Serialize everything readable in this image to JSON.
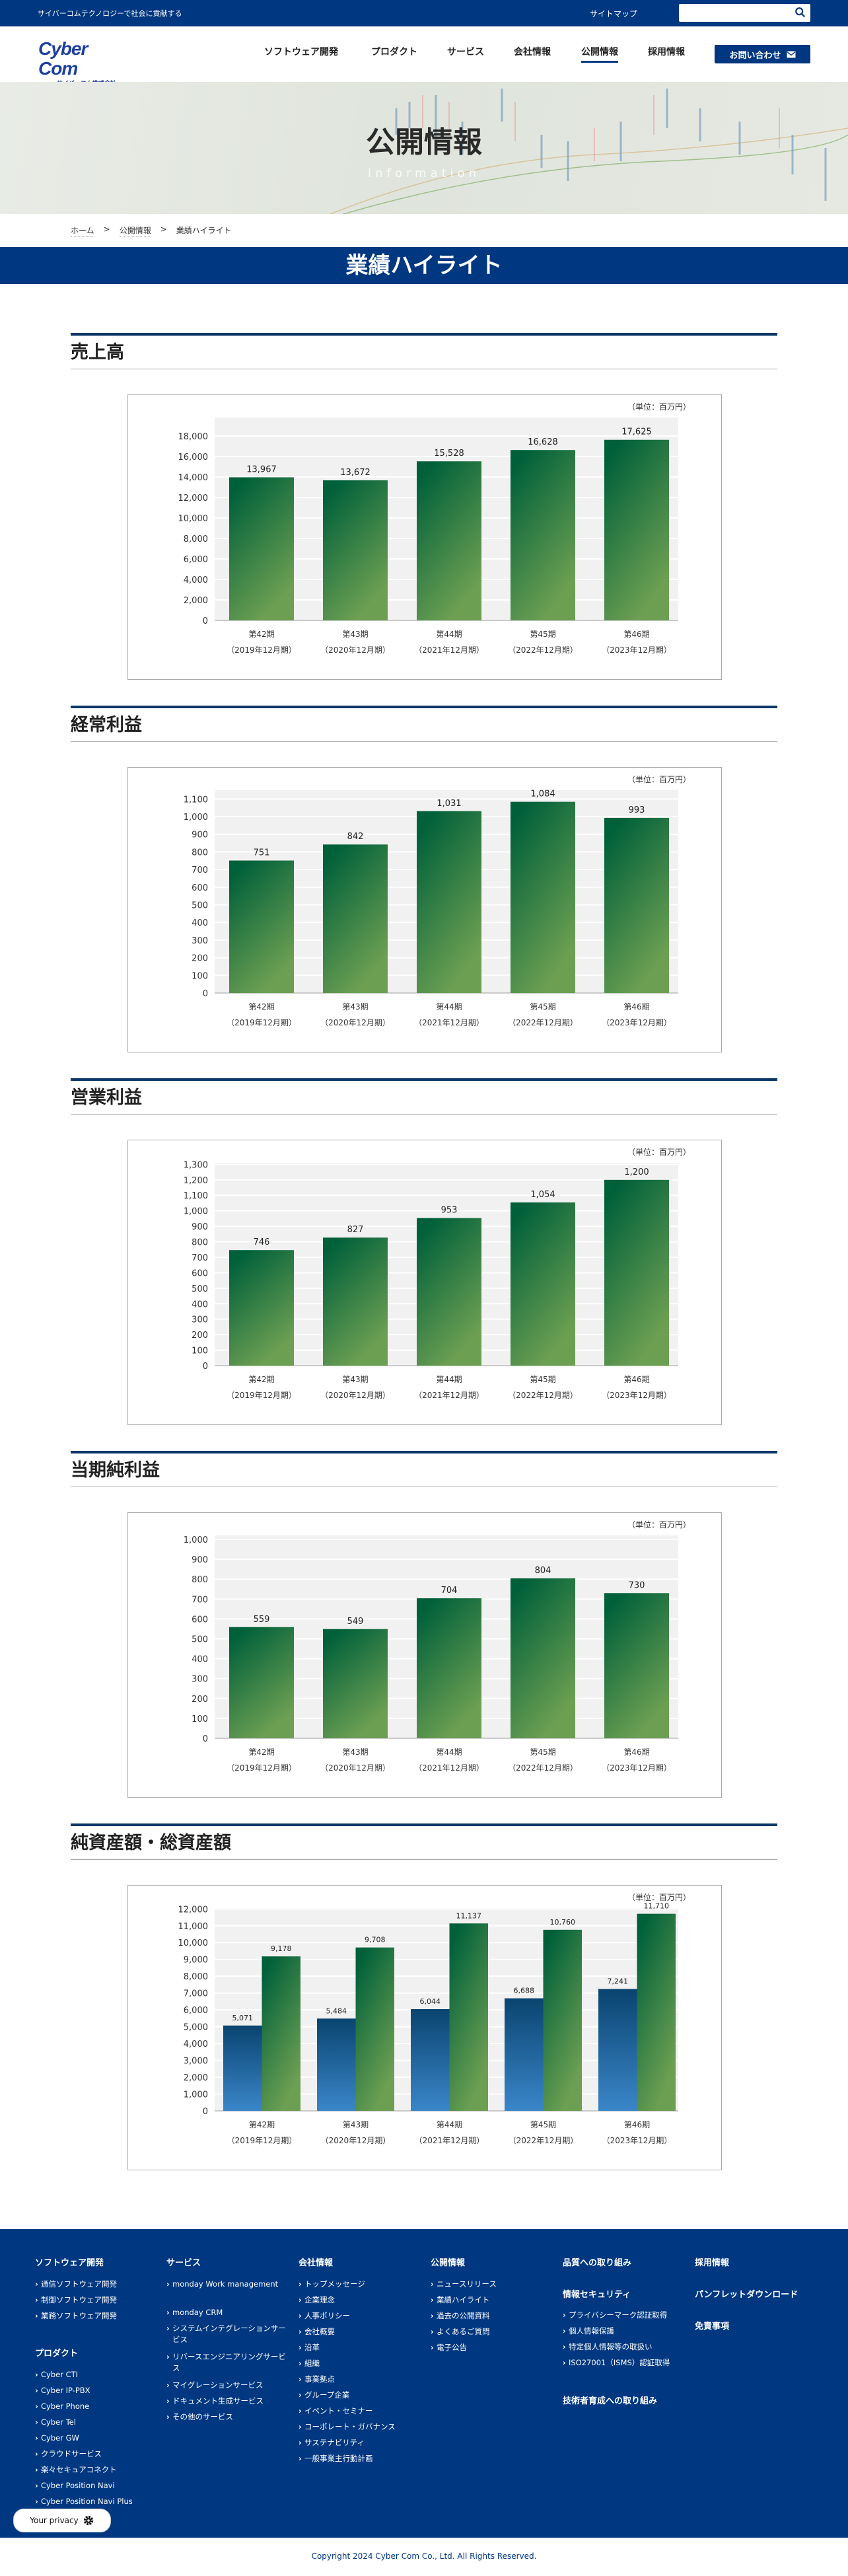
{
  "topbar": {
    "tagline": "サイバーコムテクノロジーで社会に貢献する",
    "sitemap": "サイトマップ",
    "search_placeholder": ""
  },
  "header": {
    "logo_main": "Cyber Com",
    "logo_sub": "サイバーコム株式会社",
    "nav": [
      "ソフトウェア開発",
      "プロダクト",
      "サービス",
      "会社情報",
      "公開情報",
      "採用情報"
    ],
    "active_nav": "公開情報",
    "contact": "お問い合わせ"
  },
  "hero": {
    "title": "公開情報",
    "subtitle": "Information"
  },
  "breadcrumb": [
    "ホーム",
    "公開情報",
    "業績ハイライト"
  ],
  "page_title": "業績ハイライト",
  "colors": {
    "brand": "#003781",
    "bar_green_top": "#00603a",
    "bar_green_bottom": "#6c9f52",
    "bar_blue_top": "#0a4470",
    "bar_blue_bottom": "#3a86c9"
  },
  "sections": [
    {
      "title": "売上高"
    },
    {
      "title": "経常利益"
    },
    {
      "title": "営業利益"
    },
    {
      "title": "当期純利益"
    },
    {
      "title": "純資産額・総資産額"
    }
  ],
  "chart_data": [
    {
      "type": "bar",
      "title": "売上高",
      "unit": "（単位：百万円）",
      "categories": [
        "第42期",
        "第43期",
        "第44期",
        "第45期",
        "第46期"
      ],
      "subcategories": [
        "（2019年12月期）",
        "（2020年12月期）",
        "（2021年12月期）",
        "（2022年12月期）",
        "（2023年12月期）"
      ],
      "series": [
        {
          "values": [
            13967,
            13672,
            15528,
            16628,
            17625
          ],
          "labels": [
            "13,967",
            "13,672",
            "15,528",
            "16,628",
            "17,625"
          ],
          "color": "green"
        }
      ],
      "ylim": [
        0,
        19800
      ],
      "yticks": [
        0,
        2000,
        4000,
        6000,
        8000,
        10000,
        12000,
        14000,
        16000,
        18000
      ],
      "grid": true
    },
    {
      "type": "bar",
      "title": "経常利益",
      "unit": "（単位：百万円）",
      "categories": [
        "第42期",
        "第43期",
        "第44期",
        "第45期",
        "第46期"
      ],
      "subcategories": [
        "（2019年12月期）",
        "（2020年12月期）",
        "（2021年12月期）",
        "（2022年12月期）",
        "（2023年12月期）"
      ],
      "series": [
        {
          "values": [
            751,
            842,
            1031,
            1084,
            993
          ],
          "labels": [
            "751",
            "842",
            "1,031",
            "1,084",
            "993"
          ],
          "color": "green"
        }
      ],
      "ylim": [
        0,
        1150
      ],
      "yticks": [
        0,
        100,
        200,
        300,
        400,
        500,
        600,
        700,
        800,
        900,
        1000,
        1100
      ],
      "grid": true
    },
    {
      "type": "bar",
      "title": "営業利益",
      "unit": "（単位：百万円）",
      "categories": [
        "第42期",
        "第43期",
        "第44期",
        "第45期",
        "第46期"
      ],
      "subcategories": [
        "（2019年12月期）",
        "（2020年12月期）",
        "（2021年12月期）",
        "（2022年12月期）",
        "（2023年12月期）"
      ],
      "series": [
        {
          "values": [
            746,
            827,
            953,
            1054,
            1200
          ],
          "labels": [
            "746",
            "827",
            "953",
            "1,054",
            "1,200"
          ],
          "color": "green"
        }
      ],
      "ylim": [
        0,
        1310
      ],
      "yticks": [
        0,
        100,
        200,
        300,
        400,
        500,
        600,
        700,
        800,
        900,
        1000,
        1100,
        1200,
        1300
      ],
      "grid": true
    },
    {
      "type": "bar",
      "title": "当期純利益",
      "unit": "（単位：百万円）",
      "categories": [
        "第42期",
        "第43期",
        "第44期",
        "第45期",
        "第46期"
      ],
      "subcategories": [
        "（2019年12月期）",
        "（2020年12月期）",
        "（2021年12月期）",
        "（2022年12月期）",
        "（2023年12月期）"
      ],
      "series": [
        {
          "values": [
            559,
            549,
            704,
            804,
            730
          ],
          "labels": [
            "559",
            "549",
            "704",
            "804",
            "730"
          ],
          "color": "green"
        }
      ],
      "ylim": [
        0,
        1020
      ],
      "yticks": [
        0,
        100,
        200,
        300,
        400,
        500,
        600,
        700,
        800,
        900,
        1000
      ],
      "grid": true
    },
    {
      "type": "bar",
      "title": "純資産額・総資産額",
      "unit": "（単位：百万円）",
      "categories": [
        "第42期",
        "第43期",
        "第44期",
        "第45期",
        "第46期"
      ],
      "subcategories": [
        "（2019年12月期）",
        "（2020年12月期）",
        "（2021年12月期）",
        "（2022年12月期）",
        "（2023年12月期）"
      ],
      "series": [
        {
          "values": [
            5071,
            5484,
            6044,
            6688,
            7241
          ],
          "labels": [
            "5,071",
            "5,484",
            "6,044",
            "6,688",
            "7,241"
          ],
          "color": "blue"
        },
        {
          "values": [
            9178,
            9708,
            11137,
            10760,
            11710
          ],
          "labels": [
            "9,178",
            "9,708",
            "11,137",
            "10,760",
            "11,710"
          ],
          "color": "green"
        }
      ],
      "ylim": [
        0,
        12050
      ],
      "yticks": [
        0,
        1000,
        2000,
        3000,
        4000,
        5000,
        6000,
        7000,
        8000,
        9000,
        10000,
        11000,
        12000
      ],
      "grid": true
    }
  ],
  "footer": {
    "columns": [
      {
        "groups": [
          {
            "heading": "ソフトウェア開発",
            "items": [
              "通信ソフトウェア開発",
              "制御ソフトウェア開発",
              "業務ソフトウェア開発"
            ]
          },
          {
            "heading": "プロダクト",
            "items": [
              "Cyber CTI",
              "Cyber IP-PBX",
              "Cyber Phone",
              "Cyber Tel",
              "Cyber GW",
              "クラウドサービス",
              "楽々セキュアコネクト",
              "Cyber Position Navi",
              "Cyber Position Navi Plus"
            ]
          }
        ]
      },
      {
        "groups": [
          {
            "heading": "サービス",
            "items": [
              "monday Work management",
              "monday CRM",
              "システムインテグレーションサービス",
              "リバースエンジニアリングサービス",
              "マイグレーションサービス",
              "ドキュメント生成サービス",
              "その他のサービス"
            ]
          }
        ]
      },
      {
        "groups": [
          {
            "heading": "会社情報",
            "items": [
              "トップメッセージ",
              "企業理念",
              "人事ポリシー",
              "会社概要",
              "沿革",
              "組織",
              "事業拠点",
              "グループ企業",
              "イベント・セミナー",
              "コーポレート・ガバナンス",
              "サステナビリティ",
              "一般事業主行動計画"
            ]
          }
        ]
      },
      {
        "groups": [
          {
            "heading": "公開情報",
            "items": [
              "ニュースリリース",
              "業績ハイライト",
              "過去の公開資料",
              "よくあるご質問",
              "電子公告"
            ]
          }
        ]
      },
      {
        "groups": [
          {
            "heading": "品質への取り組み",
            "items": []
          },
          {
            "heading": "情報セキュリティ",
            "items": [
              "プライバシーマーク認証取得",
              "個人情報保護",
              "特定個人情報等の取扱い",
              "ISO27001（ISMS）認証取得"
            ]
          },
          {
            "heading": "技術者育成への取り組み",
            "items": []
          }
        ]
      },
      {
        "groups": [
          {
            "heading": "採用情報",
            "items": []
          },
          {
            "heading": "パンフレットダウンロード",
            "items": []
          },
          {
            "heading": "免責事項",
            "items": []
          }
        ]
      }
    ],
    "privacy": "Your privacy",
    "copyright": "Copyright 2024 Cyber Com Co., Ltd. All Rights Reserved."
  }
}
